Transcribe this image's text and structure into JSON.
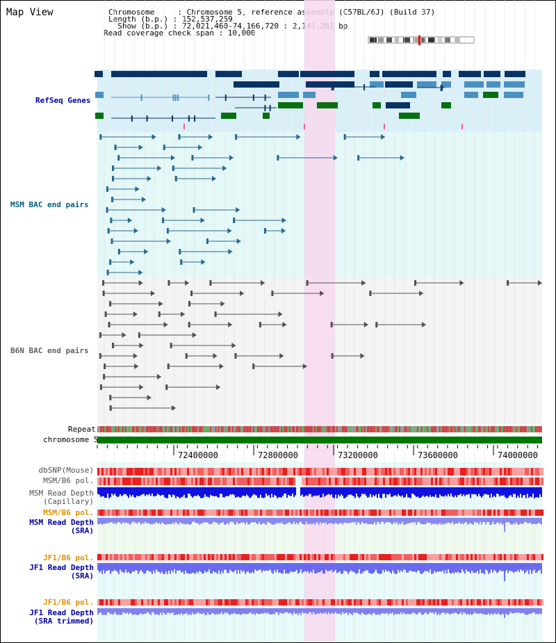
{
  "header": {
    "title": "Map View",
    "lines": [
      "Chromosome     : Chromosome 5, reference assembly (C57BL/6J) (Build 37)",
      "Length (b.p.) : 152,537,259",
      "  Show (b.p.) : 72,021,460-74,166,720 : 2,145,261 bp",
      "Read coverage check span : 10,000"
    ]
  },
  "tracks": {
    "refseq": "RefSeq Genes",
    "msm_bac": "MSM BAC end pairs",
    "b6n_bac": "B6N BAC end pairs",
    "repeat": "Repeat",
    "chromosome": "chromosome 5",
    "dbsnp": "dbSNP(Mouse)",
    "msm_b6_pol": "MSM/B6 pol.",
    "msm_depth_cap_1": "MSM Read Depth",
    "msm_depth_cap_2": "(Capillary)",
    "msm_b6_pol2": "MSM/B6 pol.",
    "msm_depth_sra_1": "MSM Read Depth",
    "msm_depth_sra_2": "(SRA)",
    "jf1_b6_pol": "JF1/B6 pol.",
    "jf1_depth_sra_1": "JF1 Read Depth",
    "jf1_depth_sra_2": "(SRA)",
    "jf1_b6_pol2": "JF1/B6 pol.",
    "jf1_depth_trim_1": "JF1 Read Depth",
    "jf1_depth_trim_2": "(SRA trimmed)"
  },
  "axis": {
    "ticks": [
      "72400000",
      "72800000",
      "73200000",
      "73600000",
      "74000000"
    ]
  },
  "colors": {
    "refseq_bg": "#daf0f8",
    "msm_bg": "#e4f8f8",
    "b6n_bg": "#f4f4f4",
    "highlight": "#f8d8f0",
    "gene_dark": "#0a3264",
    "gene_blue": "#4a90c0",
    "gene_green": "#087010",
    "msm_feature": "#286890",
    "b6n_feature": "#505050",
    "chromosome": "#007800",
    "label_blue": "#0000a0",
    "label_orange": "#e09000",
    "label_teal": "#006080"
  }
}
